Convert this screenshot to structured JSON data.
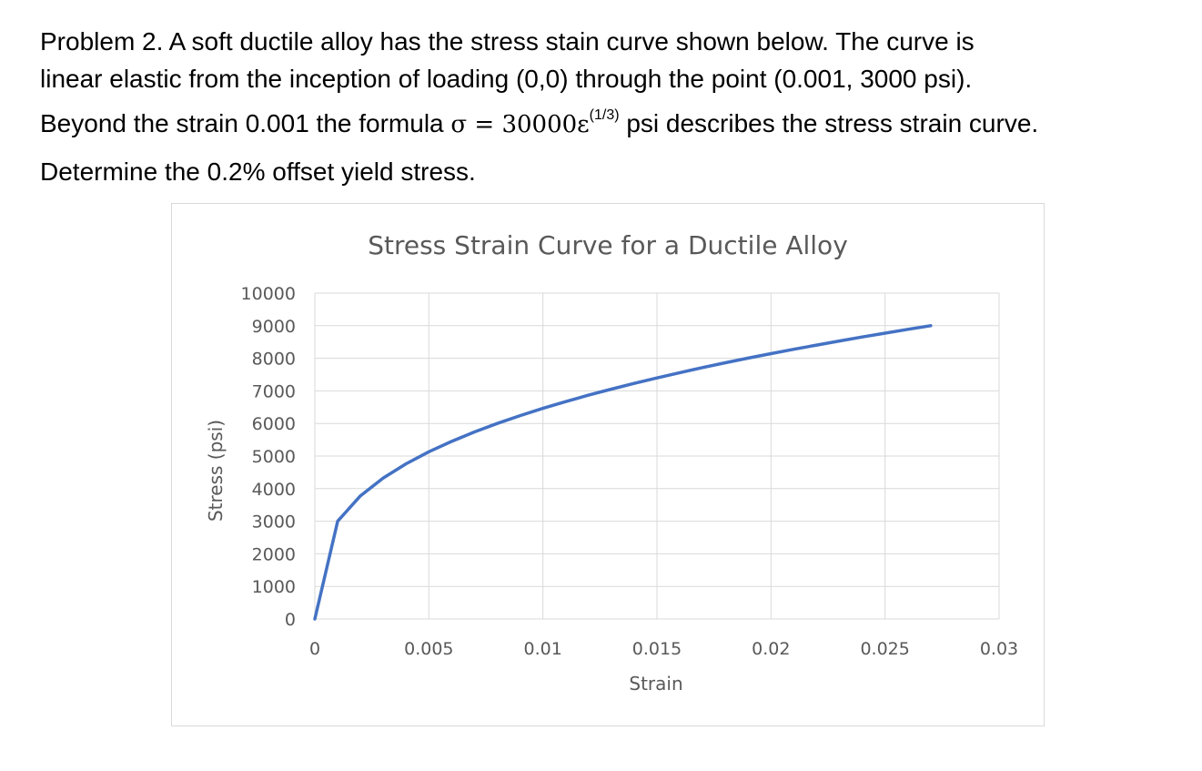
{
  "problem": {
    "line1": "Problem 2.  A soft ductile alloy has the stress stain curve shown below.  The curve is",
    "line2": "linear elastic from the inception of loading (0,0) through the point (0.001, 3000 psi).",
    "line3_prefix": "Beyond the strain 0.001 the formula ",
    "line3_sigma": "σ",
    "line3_eq": " = 30000ε",
    "line3_exp": "(1/3)",
    "line3_suffix": " psi  describes the stress strain curve.",
    "line4": "Determine the 0.2% offset yield stress."
  },
  "chart_data": {
    "type": "line",
    "title": "Stress Strain Curve for a Ductile Alloy",
    "xlabel": "Strain",
    "ylabel": "Stress (psi)",
    "xlim": [
      0,
      0.03
    ],
    "ylim": [
      0,
      10000
    ],
    "x_ticks": [
      "0",
      "0.005",
      "0.01",
      "0.015",
      "0.02",
      "0.025",
      "0.03"
    ],
    "y_ticks": [
      "0",
      "1000",
      "2000",
      "3000",
      "4000",
      "5000",
      "6000",
      "7000",
      "8000",
      "9000",
      "10000"
    ],
    "grid": true,
    "line_color": "#4472c4",
    "series": [
      {
        "x": [
          0,
          0.001,
          0.002,
          0.003,
          0.004,
          0.005,
          0.006,
          0.007,
          0.008,
          0.009,
          0.01,
          0.011,
          0.012,
          0.013,
          0.014,
          0.015,
          0.016,
          0.017,
          0.018,
          0.019,
          0.02,
          0.021,
          0.022,
          0.023,
          0.024,
          0.025,
          0.026,
          0.027
        ],
        "y": [
          0,
          3000,
          3780,
          4327,
          4762,
          5130,
          5451,
          5739,
          6000,
          6240,
          6463,
          6671,
          6868,
          7053,
          7230,
          7398,
          7560,
          7715,
          7862,
          8005,
          8143,
          8277,
          8406,
          8531,
          8653,
          8772,
          8887,
          9000
        ]
      }
    ]
  }
}
